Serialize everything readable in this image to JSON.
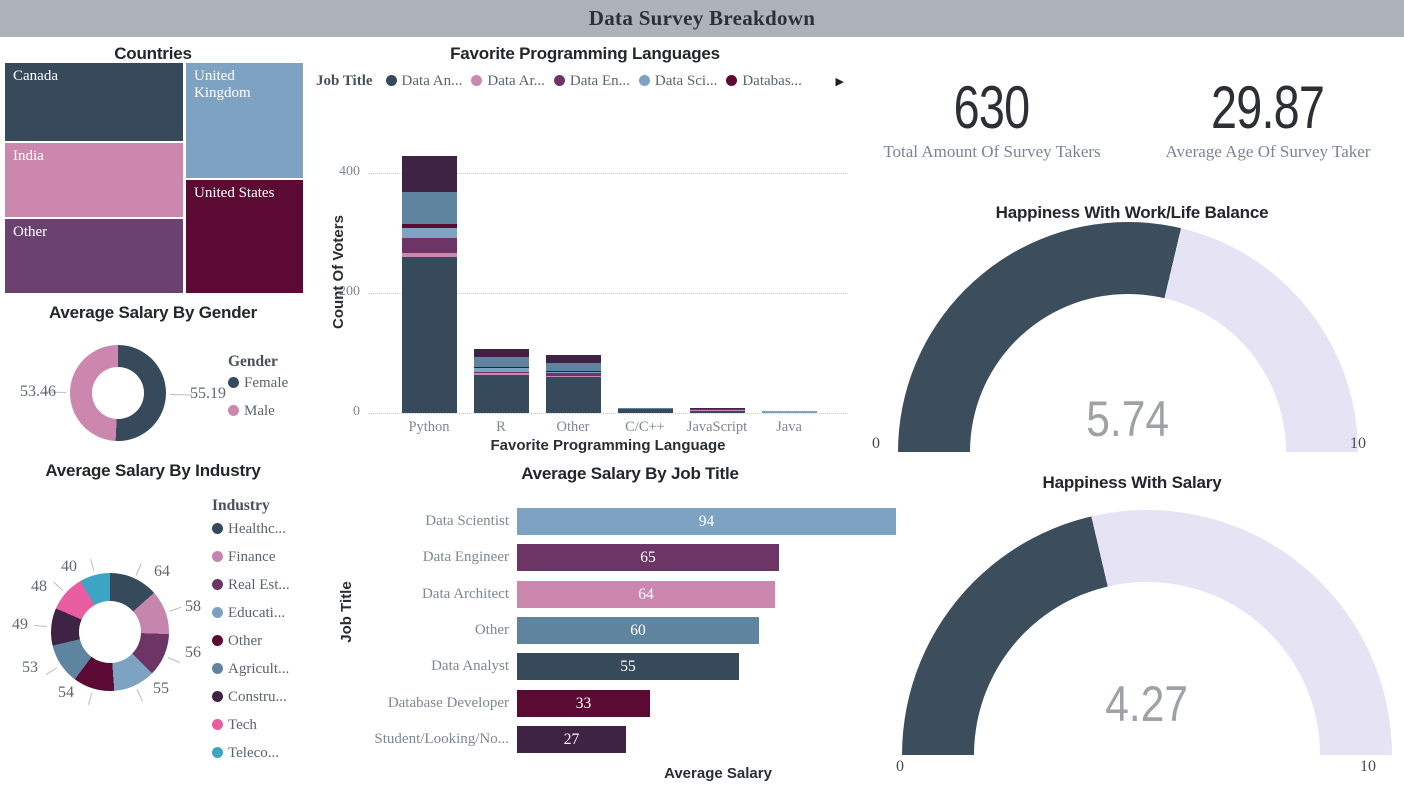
{
  "header": {
    "title": "Data Survey Breakdown"
  },
  "palette": {
    "titlebar_bg": "#AEB3BA",
    "gauge_fill": "#3C4E5C",
    "gauge_track": "#E6E3F4"
  },
  "chart_data": [
    {
      "id": "countries",
      "type": "treemap",
      "title": "Countries",
      "items": [
        {
          "label": "Canada",
          "color": "#364A5C"
        },
        {
          "label": "India",
          "color": "#CC87AE"
        },
        {
          "label": "Other",
          "color": "#6B4170"
        },
        {
          "label": "United Kingdom",
          "color": "#7EA2C1"
        },
        {
          "label": "United States",
          "color": "#5B0B33"
        }
      ]
    },
    {
      "id": "favorite_languages",
      "type": "bar",
      "stacked": true,
      "title": "Favorite Programming Languages",
      "legend_title": "Job Title",
      "legend_visible": [
        {
          "label": "Data An...",
          "color": "#364A5C"
        },
        {
          "label": "Data Ar...",
          "color": "#CC87AE"
        },
        {
          "label": "Data En...",
          "color": "#6D3466"
        },
        {
          "label": "Data Sci...",
          "color": "#7EA2C1"
        },
        {
          "label": "Databas...",
          "color": "#5B0B33"
        }
      ],
      "legend_more_icon": "▶",
      "categories": [
        "Python",
        "R",
        "Other",
        "C/C++",
        "JavaScript",
        "Java"
      ],
      "series": [
        {
          "name": "Data Analyst",
          "color": "#364A5C",
          "values": [
            259,
            63,
            60,
            7,
            4,
            0
          ]
        },
        {
          "name": "Data Architect",
          "color": "#CC87AE",
          "values": [
            6,
            3,
            2,
            0,
            1,
            0
          ]
        },
        {
          "name": "Data Engineer",
          "color": "#6D3466",
          "values": [
            25,
            2,
            5,
            0,
            2,
            0
          ]
        },
        {
          "name": "Data Scientist",
          "color": "#7EA2C1",
          "values": [
            17,
            6,
            2,
            0,
            0,
            3
          ]
        },
        {
          "name": "Database Developer",
          "color": "#5B0B33",
          "values": [
            6,
            2,
            2,
            0,
            0,
            0
          ]
        },
        {
          "name": "Other",
          "color": "#5F84A0",
          "values": [
            54,
            17,
            14,
            1,
            0,
            0
          ]
        },
        {
          "name": "Student/Looking/No...",
          "color": "#3F2345",
          "values": [
            60,
            13,
            13,
            0,
            1,
            0
          ]
        }
      ],
      "xlabel": "Favorite Programming Language",
      "ylabel": "Count Of Voters",
      "yticks": [
        0,
        200,
        400
      ],
      "ylim": [
        0,
        445
      ]
    },
    {
      "id": "salary_by_gender",
      "type": "donut",
      "title": "Average Salary By Gender",
      "legend_title": "Gender",
      "slices": [
        {
          "label": "Female",
          "value": 55.19,
          "display": "55.19",
          "color": "#364A5C"
        },
        {
          "label": "Male",
          "value": 53.46,
          "display": "53.46",
          "color": "#CC87AE"
        }
      ]
    },
    {
      "id": "salary_by_industry",
      "type": "donut",
      "title": "Average Salary By Industry",
      "legend_title": "Industry",
      "slices": [
        {
          "label": "Healthc...",
          "value": 64,
          "display": "64",
          "color": "#364A5C"
        },
        {
          "label": "Finance",
          "value": 58,
          "display": "58",
          "color": "#C685AC"
        },
        {
          "label": "Real Est...",
          "value": 56,
          "display": "56",
          "color": "#6D3466"
        },
        {
          "label": "Educati...",
          "value": 55,
          "display": "55",
          "color": "#7EA2C1"
        },
        {
          "label": "Other",
          "value": 54,
          "display": "54",
          "color": "#5B0B33"
        },
        {
          "label": "Agricult...",
          "value": 53,
          "display": "53",
          "color": "#5F84A0"
        },
        {
          "label": "Constru...",
          "value": 49,
          "display": "49",
          "color": "#3F2345"
        },
        {
          "label": "Tech",
          "value": 48,
          "display": "48",
          "color": "#E95DA0"
        },
        {
          "label": "Teleco...",
          "value": 40,
          "display": "40",
          "color": "#3DA5C3"
        }
      ]
    },
    {
      "id": "salary_by_job_title",
      "type": "bar",
      "horizontal": true,
      "title": "Average Salary By Job Title",
      "categories": [
        "Data Scientist",
        "Data Engineer",
        "Data Architect",
        "Other",
        "Data Analyst",
        "Database Developer",
        "Student/Looking/No..."
      ],
      "values": [
        94,
        65,
        64,
        60,
        55,
        33,
        27
      ],
      "value_labels": [
        "94",
        "65",
        "64",
        "60",
        "55",
        "33",
        "27"
      ],
      "colors": [
        "#7EA2C1",
        "#6D3466",
        "#CC87AE",
        "#5F84A0",
        "#364A5C",
        "#5B0B33",
        "#3F2345"
      ],
      "xlabel": "Average Salary",
      "ylabel": "Job Title"
    },
    {
      "id": "kpi_total",
      "type": "kpi",
      "value": "630",
      "label": "Total Amount Of Survey Takers"
    },
    {
      "id": "kpi_age",
      "type": "kpi",
      "value": "29.87",
      "label": "Average Age Of Survey Taker"
    },
    {
      "id": "gauge_wlb",
      "type": "gauge",
      "title": "Happiness With Work/Life Balance",
      "value": 5.74,
      "display": "5.74",
      "min": "0",
      "max": "10",
      "fill": "#3C4E5C",
      "track": "#E6E3F4"
    },
    {
      "id": "gauge_salary",
      "type": "gauge",
      "title": "Happiness With Salary",
      "value": 4.27,
      "display": "4.27",
      "min": "0",
      "max": "10",
      "fill": "#3C4E5C",
      "track": "#E6E3F4"
    }
  ]
}
